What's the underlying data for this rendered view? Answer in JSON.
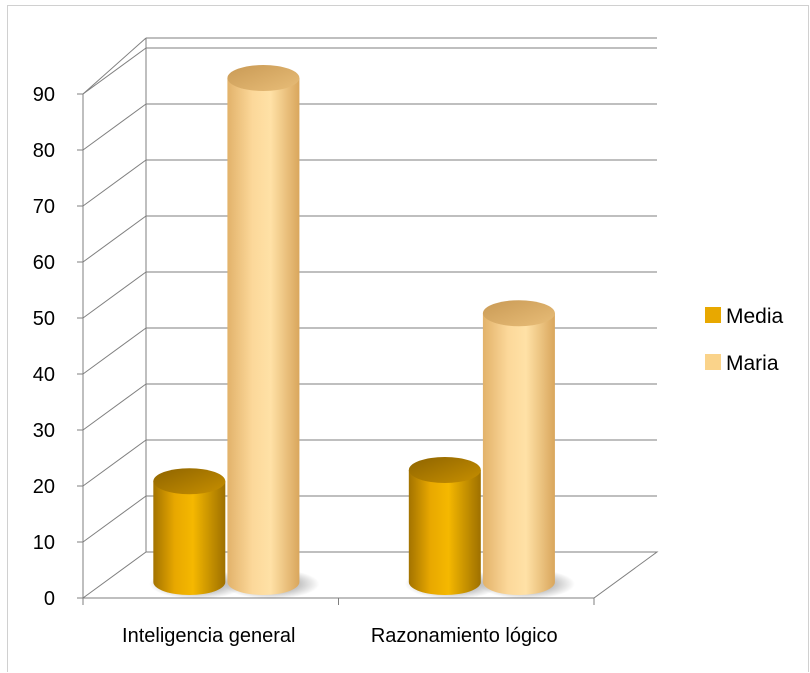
{
  "chart_data": {
    "type": "bar",
    "style": "3d-cylinder",
    "categories": [
      "Inteligencia general",
      "Razonamiento lógico"
    ],
    "series": [
      {
        "name": "Media",
        "values": [
          18,
          20
        ],
        "color": "#E8A800"
      },
      {
        "name": "Maria",
        "values": [
          90,
          48
        ],
        "color": "#FAD38A"
      }
    ],
    "ylim": [
      0,
      90
    ],
    "yticks": [
      "0",
      "10",
      "20",
      "30",
      "40",
      "50",
      "60",
      "70",
      "80",
      "90"
    ],
    "grid": true,
    "legend_position": "right"
  }
}
